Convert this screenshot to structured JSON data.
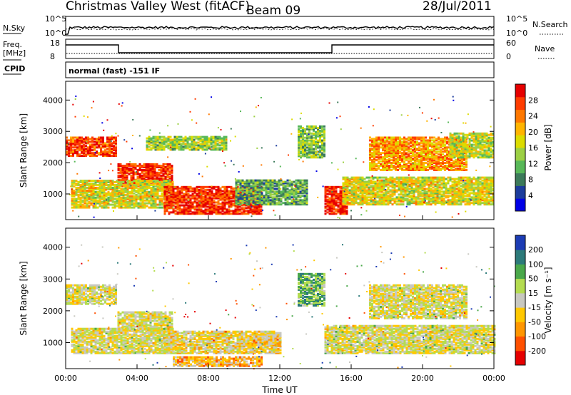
{
  "header": {
    "title": "Christmas Valley West (fitACF)",
    "beam": "Beam 09",
    "date": "28/Jul/2011"
  },
  "top_panels": {
    "nsky_label": "N.Sky",
    "nsearch_label": "N.Search",
    "noise_ticks": [
      "10^5",
      "10^0"
    ],
    "freq_label_1": "Freq.",
    "freq_label_2": "[MHz]",
    "freq_ticks": [
      "18",
      "8"
    ],
    "nave_label": "Nave",
    "nave_ticks": [
      "60",
      "0"
    ],
    "cpid_label": "CPID",
    "cpid_text": "normal (fast) -151 IF"
  },
  "chart_data": [
    {
      "type": "heatmap",
      "name": "power",
      "xlabel": "Time UT",
      "ylabel": "Slant Range [km]",
      "x_ticks": [
        "00:00",
        "04:00",
        "08:00",
        "12:00",
        "16:00",
        "20:00",
        "00:00"
      ],
      "x_range_hours": [
        0,
        24
      ],
      "y_ticks": [
        "1000",
        "2000",
        "3000",
        "4000"
      ],
      "y_range_km": [
        180,
        4600
      ],
      "colorbar_label": "Power [dB]",
      "colorbar_ticks": [
        "28",
        "24",
        "20",
        "16",
        "12",
        "8",
        "4"
      ],
      "colors": [
        "#0000e6",
        "#1c3c9c",
        "#3c7a5a",
        "#58b858",
        "#9cd044",
        "#dcdc00",
        "#ffb400",
        "#ff7800",
        "#ff3c00",
        "#e60000"
      ],
      "bands": [
        {
          "t0": 0.0,
          "t1": 2.8,
          "r0": 2250,
          "r1": 2850,
          "level": 0.85
        },
        {
          "t0": 2.9,
          "t1": 6.0,
          "r0": 1350,
          "r1": 2000,
          "level": 0.9
        },
        {
          "t0": 4.5,
          "t1": 9.0,
          "r0": 2450,
          "r1": 2900,
          "level": 0.45
        },
        {
          "t0": 0.3,
          "t1": 6.0,
          "r0": 600,
          "r1": 1500,
          "level": 0.55
        },
        {
          "t0": 5.5,
          "t1": 11.0,
          "r0": 400,
          "r1": 1300,
          "level": 0.88
        },
        {
          "t0": 9.5,
          "t1": 13.5,
          "r0": 700,
          "r1": 1500,
          "level": 0.35
        },
        {
          "t0": 14.5,
          "t1": 15.8,
          "r0": 400,
          "r1": 1300,
          "level": 0.92
        },
        {
          "t0": 15.5,
          "t1": 24.0,
          "r0": 700,
          "r1": 1600,
          "level": 0.55
        },
        {
          "t0": 17.0,
          "t1": 22.5,
          "r0": 1800,
          "r1": 2850,
          "level": 0.7
        },
        {
          "t0": 21.5,
          "t1": 24.0,
          "r0": 2200,
          "r1": 3000,
          "level": 0.5
        },
        {
          "t0": 13.0,
          "t1": 14.5,
          "r0": 2200,
          "r1": 3200,
          "level": 0.4
        }
      ]
    },
    {
      "type": "heatmap",
      "name": "velocity",
      "xlabel": "Time UT",
      "ylabel": "Slant Range [km]",
      "x_ticks": [
        "00:00",
        "04:00",
        "08:00",
        "12:00",
        "16:00",
        "20:00",
        "00:00"
      ],
      "x_range_hours": [
        0,
        24
      ],
      "y_ticks": [
        "1000",
        "2000",
        "3000",
        "4000"
      ],
      "y_range_km": [
        180,
        4600
      ],
      "colorbar_label": "Velocity [m s⁻¹]",
      "colorbar_ticks": [
        "200",
        "100",
        "50",
        "15",
        "-15",
        "-50",
        "-100",
        "-200"
      ],
      "colors": [
        "#1c3cb4",
        "#2c7a7a",
        "#4aa84a",
        "#b4dc50",
        "#c8c8c0",
        "#ffc800",
        "#ff9600",
        "#ff5000",
        "#e60000"
      ],
      "bands": [
        {
          "t0": 0.0,
          "t1": 2.8,
          "r0": 2250,
          "r1": 2850,
          "level": 0.5
        },
        {
          "t0": 2.9,
          "t1": 6.0,
          "r0": 1400,
          "r1": 2000,
          "level": 0.5
        },
        {
          "t0": 0.3,
          "t1": 6.0,
          "r0": 700,
          "r1": 1500,
          "level": 0.5
        },
        {
          "t0": 5.5,
          "t1": 12.0,
          "r0": 700,
          "r1": 1400,
          "level": 0.55
        },
        {
          "t0": 6.0,
          "t1": 11.0,
          "r0": 300,
          "r1": 600,
          "level": 0.65
        },
        {
          "t0": 10.5,
          "t1": 12.0,
          "r0": 950,
          "r1": 1250,
          "level": 0.62
        },
        {
          "t0": 14.5,
          "t1": 24.0,
          "r0": 700,
          "r1": 1600,
          "level": 0.5
        },
        {
          "t0": 17.0,
          "t1": 22.5,
          "r0": 1800,
          "r1": 2850,
          "level": 0.5
        },
        {
          "t0": 13.0,
          "t1": 14.5,
          "r0": 2200,
          "r1": 3200,
          "level": 0.3
        }
      ]
    }
  ]
}
